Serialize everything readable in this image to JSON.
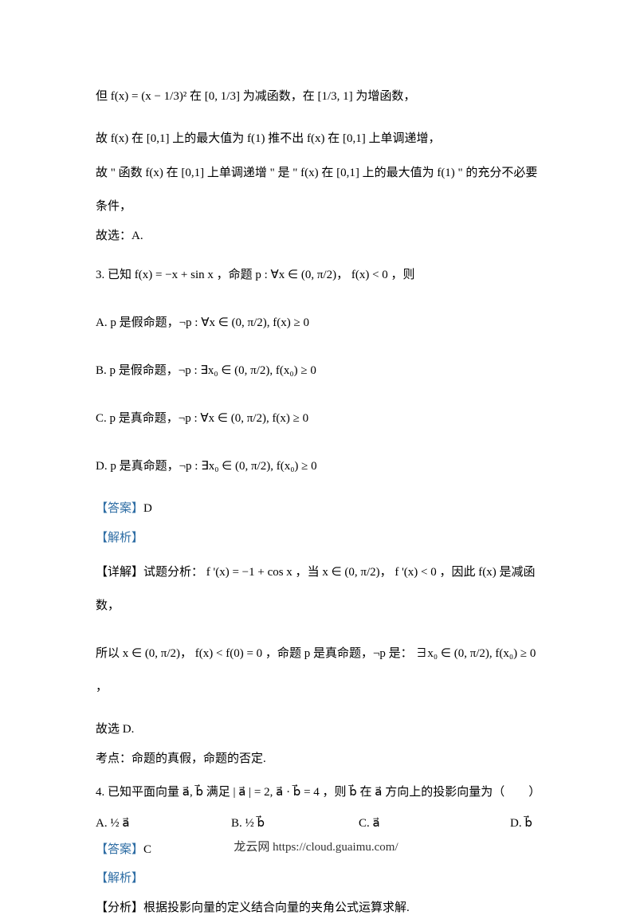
{
  "colors": {
    "text": "#000000",
    "link": "#2e6da4",
    "background": "#ffffff"
  },
  "typography": {
    "body_fontsize": 15,
    "footer_fontsize": 15,
    "font_family": "SimSun, Times New Roman, serif"
  },
  "block1": {
    "l1": "但 f(x) = (x − 1/3)² 在 [0, 1/3] 为减函数，在 [1/3, 1] 为增函数，",
    "l2": "故 f(x) 在 [0,1] 上的最大值为 f(1) 推不出 f(x) 在 [0,1] 上单调递增，",
    "l3": "故 \" 函数 f(x) 在 [0,1] 上单调递增 \" 是 \" f(x) 在 [0,1] 上的最大值为 f(1) \" 的充分不必要",
    "l4": "条件，",
    "l5": "故选：A."
  },
  "q3": {
    "stem": "3.  已知 f(x) = −x + sin x ，命题 p : ∀x ∈ (0, π/2)， f(x) < 0 ，则",
    "A": "A.  p 是假命题，¬p : ∀x ∈ (0, π/2), f(x) ≥ 0",
    "B": "B.  p 是假命题，¬p : ∃x₀ ∈ (0, π/2), f(x₀) ≥ 0",
    "C": "C.  p 是真命题，¬p : ∀x ∈ (0, π/2), f(x) ≥ 0",
    "D": "D.  p 是真命题，¬p : ∃x₀ ∈ (0, π/2), f(x₀) ≥ 0",
    "answer_label": "【答案】",
    "answer": "D",
    "analysis_label": "【解析】",
    "detail": "【详解】试题分析： f '(x) = −1 + cos x ，当 x ∈ (0, π/2)， f '(x) < 0 ，因此 f(x) 是减函数，",
    "detail2": "所以 x ∈ (0, π/2)， f(x) < f(0) = 0 ，命题 p 是真命题，¬p 是： ∃x₀ ∈ (0, π/2), f(x₀) ≥ 0 ，",
    "detail3": "故选 D.",
    "point": "考点：命题的真假，命题的否定."
  },
  "q4": {
    "stem": "4.  已知平面向量 a⃗, b⃗ 满足 | a⃗ | = 2, a⃗ · b⃗ = 4 ，则 b⃗ 在 a⃗ 方向上的投影向量为（　　）",
    "A": "A.   ½ a⃗",
    "B": "B.   ½ b⃗",
    "C": "C.   a⃗",
    "D": "D.   b⃗",
    "answer_label": "【答案】",
    "answer": "C",
    "analysis_label": "【解析】",
    "fenxi": "【分析】根据投影向量的定义结合向量的夹角公式运算求解."
  },
  "footer": "龙云网 https://cloud.guaimu.com/"
}
